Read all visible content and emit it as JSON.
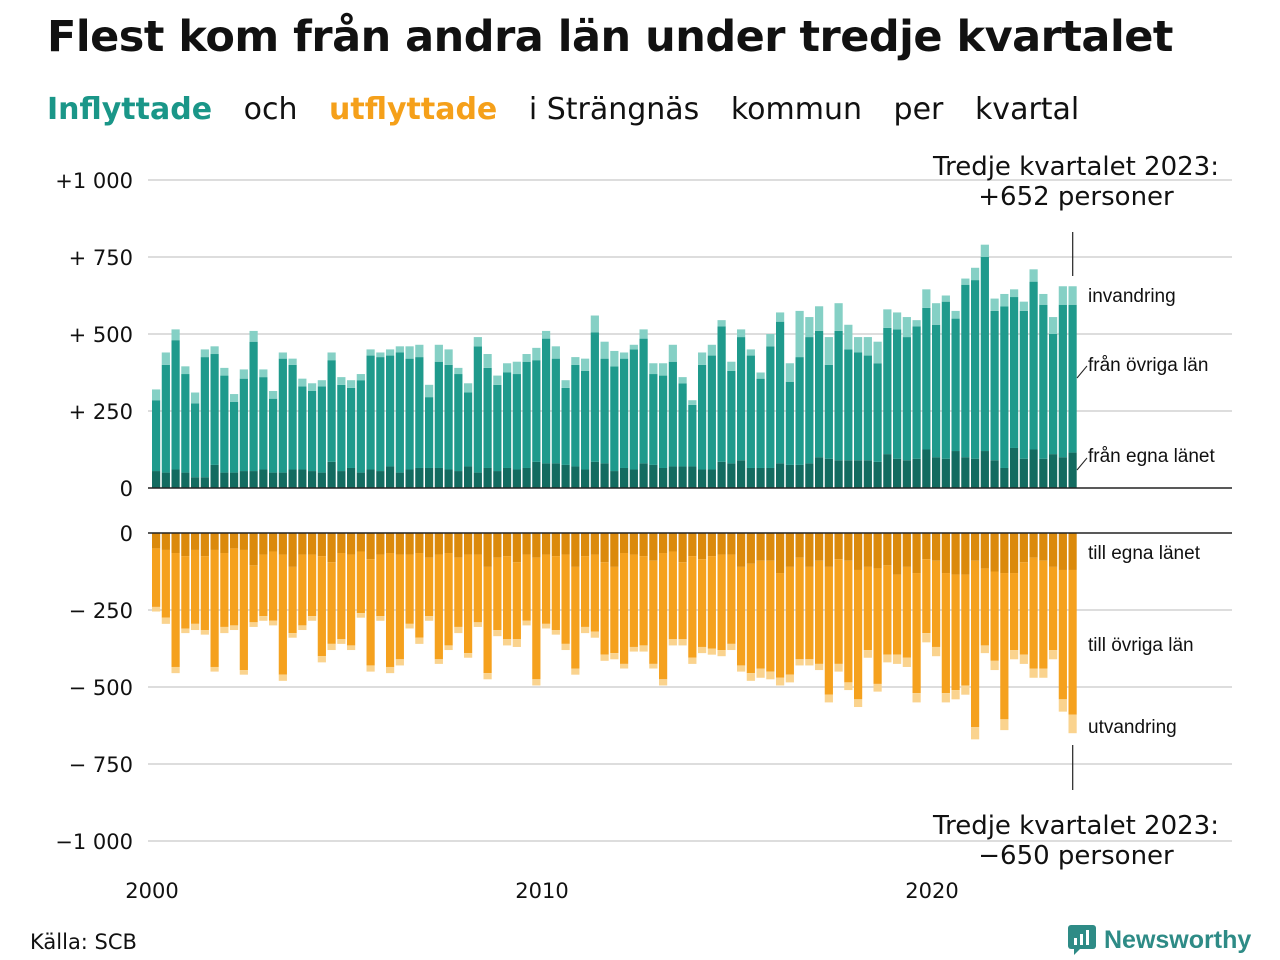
{
  "title": "Flest kom från andra län under tredje kvartalet",
  "subtitle": {
    "in_word": "Inflyttade",
    "och": "och",
    "out_word": "utflyttade",
    "rest": [
      "i Strängnäs",
      "kommun",
      "per",
      "kvartal"
    ]
  },
  "source": "Källa: SCB",
  "logo": {
    "text": "Newsworthy"
  },
  "colors": {
    "in_own": "#136b60",
    "in_other": "#1f9a8c",
    "in_immigration": "#85d0c5",
    "out_own": "#db8a0c",
    "out_other": "#f5a11e",
    "out_emigration": "#fad38e",
    "grid": "#dddddd"
  },
  "chart_data": {
    "type": "bar",
    "stacked": true,
    "x_start": "2000 Q1",
    "x_step": "quarter",
    "x_ticks": [
      {
        "value": 2000,
        "label": "2000"
      },
      {
        "value": 2010,
        "label": "2010"
      },
      {
        "value": 2020,
        "label": "2020"
      }
    ],
    "top_panel": {
      "ylim": [
        0,
        1000
      ],
      "yticks": [
        {
          "value": 1000,
          "label": "+1 000"
        },
        {
          "value": 750,
          "label": "+  750"
        },
        {
          "value": 500,
          "label": "+  500"
        },
        {
          "value": 250,
          "label": "+  250"
        },
        {
          "value": 0,
          "label": "0"
        }
      ],
      "series": [
        {
          "name": "från egna länet",
          "values": [
            55,
            50,
            60,
            50,
            35,
            35,
            75,
            50,
            50,
            55,
            55,
            60,
            50,
            50,
            60,
            60,
            55,
            50,
            85,
            55,
            65,
            50,
            60,
            55,
            70,
            50,
            60,
            65,
            65,
            65,
            60,
            55,
            70,
            50,
            65,
            55,
            65,
            60,
            65,
            85,
            80,
            80,
            75,
            70,
            60,
            85,
            80,
            55,
            65,
            60,
            80,
            75,
            65,
            70,
            70,
            70,
            60,
            60,
            85,
            80,
            90,
            65,
            65,
            65,
            80,
            75,
            75,
            80,
            100,
            95,
            90,
            90,
            90,
            90,
            85,
            110,
            95,
            90,
            95,
            125,
            100,
            95,
            120,
            100,
            95,
            120,
            90,
            65,
            130,
            95,
            125,
            95,
            110,
            100,
            115
          ]
        },
        {
          "name": "från övriga län",
          "values": [
            230,
            350,
            420,
            320,
            240,
            390,
            360,
            315,
            230,
            300,
            420,
            300,
            240,
            370,
            340,
            270,
            260,
            280,
            330,
            280,
            260,
            300,
            370,
            370,
            360,
            390,
            360,
            360,
            230,
            345,
            340,
            315,
            240,
            410,
            325,
            280,
            310,
            310,
            345,
            330,
            405,
            340,
            250,
            330,
            320,
            420,
            340,
            340,
            355,
            390,
            405,
            295,
            300,
            340,
            270,
            200,
            340,
            370,
            440,
            300,
            400,
            365,
            290,
            395,
            460,
            270,
            350,
            410,
            410,
            305,
            420,
            360,
            350,
            340,
            320,
            410,
            420,
            400,
            430,
            460,
            430,
            510,
            430,
            560,
            580,
            630,
            485,
            525,
            490,
            480,
            545,
            500,
            390,
            495,
            480
          ]
        },
        {
          "name": "invandring",
          "values": [
            35,
            40,
            35,
            25,
            35,
            25,
            25,
            25,
            25,
            30,
            35,
            25,
            25,
            20,
            20,
            25,
            25,
            20,
            25,
            25,
            25,
            20,
            20,
            15,
            20,
            20,
            40,
            40,
            40,
            55,
            50,
            20,
            30,
            30,
            45,
            30,
            30,
            40,
            25,
            40,
            25,
            40,
            25,
            25,
            40,
            55,
            55,
            50,
            20,
            15,
            30,
            35,
            40,
            55,
            20,
            15,
            40,
            35,
            20,
            30,
            25,
            20,
            20,
            40,
            30,
            60,
            150,
            65,
            80,
            90,
            90,
            80,
            50,
            60,
            70,
            60,
            55,
            65,
            20,
            60,
            70,
            20,
            25,
            20,
            40,
            40,
            40,
            40,
            25,
            30,
            40,
            35,
            55,
            60,
            60
          ]
        }
      ]
    },
    "bottom_panel": {
      "ylim": [
        -1000,
        0
      ],
      "yticks": [
        {
          "value": 0,
          "label": "0"
        },
        {
          "value": -250,
          "label": "−  250"
        },
        {
          "value": -500,
          "label": "−  500"
        },
        {
          "value": -750,
          "label": "−  750"
        },
        {
          "value": -1000,
          "label": "−1 000"
        }
      ],
      "series": [
        {
          "name": "till egna länet",
          "values": [
            -50,
            -55,
            -65,
            -75,
            -55,
            -75,
            -55,
            -65,
            -50,
            -55,
            -105,
            -70,
            -60,
            -70,
            -110,
            -70,
            -70,
            -75,
            -95,
            -65,
            -70,
            -60,
            -85,
            -70,
            -65,
            -70,
            -70,
            -65,
            -80,
            -70,
            -65,
            -80,
            -70,
            -70,
            -110,
            -80,
            -75,
            -95,
            -70,
            -80,
            -70,
            -75,
            -70,
            -110,
            -75,
            -70,
            -95,
            -110,
            -65,
            -70,
            -75,
            -90,
            -65,
            -60,
            -95,
            -75,
            -85,
            -75,
            -70,
            -70,
            -110,
            -100,
            -90,
            -90,
            -130,
            -110,
            -80,
            -110,
            -90,
            -110,
            -85,
            -90,
            -120,
            -110,
            -115,
            -105,
            -135,
            -110,
            -130,
            -85,
            -90,
            -130,
            -135,
            -135,
            -90,
            -115,
            -125,
            -130,
            -130,
            -95,
            -80,
            -90,
            -110,
            -120,
            -120
          ]
        },
        {
          "name": "till övriga län",
          "values": [
            -190,
            -220,
            -370,
            -235,
            -240,
            -240,
            -380,
            -240,
            -250,
            -390,
            -185,
            -200,
            -225,
            -390,
            -215,
            -230,
            -200,
            -325,
            -265,
            -280,
            -295,
            -200,
            -345,
            -200,
            -370,
            -340,
            -225,
            -275,
            -190,
            -340,
            -300,
            -225,
            -320,
            -220,
            -345,
            -235,
            -270,
            -250,
            -215,
            -395,
            -225,
            -240,
            -290,
            -330,
            -230,
            -250,
            -300,
            -280,
            -360,
            -300,
            -290,
            -335,
            -410,
            -285,
            -250,
            -330,
            -285,
            -300,
            -310,
            -290,
            -320,
            -355,
            -350,
            -360,
            -340,
            -350,
            -330,
            -300,
            -335,
            -415,
            -340,
            -395,
            -420,
            -270,
            -375,
            -290,
            -260,
            -295,
            -390,
            -240,
            -280,
            -390,
            -375,
            -360,
            -540,
            -250,
            -290,
            -475,
            -250,
            -300,
            -360,
            -350,
            -270,
            -420,
            -470
          ]
        },
        {
          "name": "utvandring",
          "values": [
            -15,
            -20,
            -20,
            -15,
            -20,
            -15,
            -15,
            -20,
            -15,
            -15,
            -15,
            -15,
            -15,
            -20,
            -15,
            -15,
            -15,
            -20,
            -20,
            -15,
            -15,
            -15,
            -20,
            -15,
            -20,
            -20,
            -15,
            -20,
            -15,
            -15,
            -15,
            -20,
            -15,
            -15,
            -20,
            -20,
            -20,
            -25,
            -15,
            -20,
            -15,
            -15,
            -20,
            -20,
            -20,
            -20,
            -20,
            -20,
            -15,
            -15,
            -20,
            -15,
            -20,
            -20,
            -20,
            -20,
            -20,
            -20,
            -20,
            -20,
            -20,
            -25,
            -30,
            -25,
            -25,
            -25,
            -20,
            -20,
            -20,
            -25,
            -25,
            -25,
            -25,
            -25,
            -25,
            -25,
            -30,
            -30,
            -30,
            -30,
            -30,
            -30,
            -30,
            -30,
            -40,
            -25,
            -30,
            -35,
            -30,
            -30,
            -30,
            -30,
            -30,
            -40,
            -60
          ]
        }
      ]
    },
    "legend": {
      "top": [
        "invandring",
        "från övriga län",
        "från egna länet"
      ],
      "bottom": [
        "till egna länet",
        "till övriga län",
        "utvandring"
      ]
    },
    "annotations": [
      {
        "line1": "Tredje kvartalet 2023:",
        "line2": "+652 personer"
      },
      {
        "line1": "Tredje kvartalet 2023:",
        "line2": "−650 personer"
      }
    ]
  }
}
